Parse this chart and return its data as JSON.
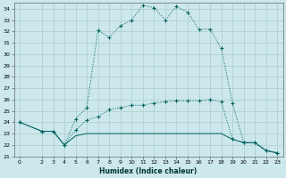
{
  "xlabel": "Humidex (Indice chaleur)",
  "bg_color": "#cce8ec",
  "grid_color": "#aacccc",
  "line_color": "#006060",
  "xlim": [
    -0.5,
    23.5
  ],
  "ylim": [
    21,
    34.5
  ],
  "xticks": [
    0,
    2,
    3,
    4,
    5,
    6,
    7,
    8,
    9,
    10,
    11,
    12,
    13,
    14,
    15,
    16,
    17,
    18,
    19,
    20,
    21,
    22,
    23
  ],
  "yticks": [
    21,
    22,
    23,
    24,
    25,
    26,
    27,
    28,
    29,
    30,
    31,
    32,
    33,
    34
  ],
  "s1_x": [
    0,
    2,
    3,
    4,
    5,
    6,
    7,
    8,
    9,
    10,
    11,
    12,
    13,
    14,
    15,
    16,
    17,
    18,
    19,
    20,
    21,
    22,
    23
  ],
  "s1_y": [
    24.0,
    23.2,
    23.2,
    22.0,
    24.3,
    25.3,
    32.1,
    31.5,
    32.5,
    33.0,
    34.3,
    34.1,
    33.0,
    34.2,
    33.7,
    32.2,
    32.2,
    30.5,
    25.7,
    22.2,
    22.2,
    21.5,
    21.3
  ],
  "s2_x": [
    0,
    2,
    3,
    4,
    5,
    6,
    7,
    8,
    9,
    10,
    11,
    12,
    13,
    14,
    15,
    16,
    17,
    18,
    19,
    20,
    21,
    22,
    23
  ],
  "s2_y": [
    24.0,
    23.2,
    23.2,
    22.0,
    23.3,
    24.2,
    24.5,
    25.1,
    25.3,
    25.5,
    25.5,
    25.7,
    25.8,
    25.9,
    25.9,
    25.9,
    26.0,
    25.8,
    22.5,
    22.2,
    22.2,
    21.5,
    21.3
  ],
  "s3_x": [
    0,
    2,
    3,
    4,
    5,
    6,
    7,
    8,
    9,
    10,
    11,
    12,
    13,
    14,
    15,
    16,
    17,
    18,
    19,
    20,
    21,
    22,
    23
  ],
  "s3_y": [
    24.0,
    23.2,
    23.2,
    22.0,
    22.8,
    23.0,
    23.0,
    23.0,
    23.0,
    23.0,
    23.0,
    23.0,
    23.0,
    23.0,
    23.0,
    23.0,
    23.0,
    23.0,
    22.5,
    22.2,
    22.2,
    21.5,
    21.3
  ]
}
